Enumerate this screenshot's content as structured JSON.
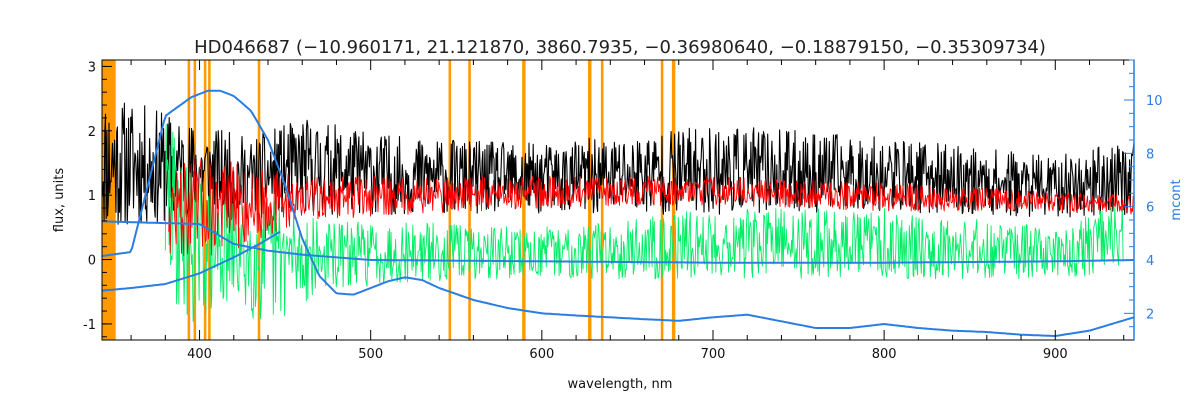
{
  "chart_data": {
    "type": "line",
    "title": "HD046687    (−10.960171, 21.121870, 3860.7935, −0.36980640, −0.18879150, −0.35309734)",
    "xlabel": "wavelength, nm",
    "ylabel": "flux, units",
    "y2label": "mcont",
    "xlim": [
      343,
      946
    ],
    "ylim": [
      -1.25,
      3.1
    ],
    "y2lim": [
      1.0,
      11.5
    ],
    "xticks": [
      400,
      500,
      600,
      700,
      800,
      900
    ],
    "yticks": [
      -1,
      0,
      1,
      2,
      3
    ],
    "y2ticks": [
      2,
      4,
      6,
      8,
      10
    ],
    "grid": false,
    "legend": "none",
    "colors": {
      "observed": "#000000",
      "model": "#ff0000",
      "residual": "#00ee66",
      "continuum": "#2a7de1",
      "masks": "#ff9900",
      "axis": "#000000",
      "right_axis": "#2a7de1"
    },
    "masked_regions_nm": [
      [
        343,
        351
      ],
      [
        393,
        394.5
      ],
      [
        396.5,
        398
      ],
      [
        402.5,
        404
      ],
      [
        405,
        406.5
      ],
      [
        434,
        435.5
      ],
      [
        545.5,
        546.5
      ],
      [
        557,
        558.5
      ],
      [
        588.5,
        590.5
      ],
      [
        627,
        629
      ],
      [
        634.5,
        636
      ],
      [
        669.5,
        671
      ],
      [
        676,
        678
      ]
    ],
    "series": [
      {
        "key": "observed",
        "axis": "left",
        "x_start": 343,
        "x_end": 946,
        "envelope_x": [
          343,
          380,
          400,
          430,
          460,
          520,
          600,
          700,
          800,
          900,
          946
        ],
        "envelope_upper": [
          2.6,
          2.3,
          2.1,
          1.9,
          2.2,
          1.9,
          1.8,
          2.1,
          1.9,
          1.6,
          1.9
        ],
        "envelope_lower": [
          0.45,
          0.55,
          0.7,
          0.6,
          0.7,
          0.7,
          0.7,
          0.7,
          0.75,
          0.65,
          0.7
        ]
      },
      {
        "key": "model",
        "axis": "left",
        "x_start": 382,
        "x_end": 946,
        "envelope_x": [
          382,
          400,
          430,
          460,
          520,
          600,
          700,
          800,
          900,
          946
        ],
        "envelope_upper": [
          1.4,
          1.6,
          1.5,
          1.3,
          1.3,
          1.3,
          1.3,
          1.2,
          1.05,
          1.0
        ],
        "envelope_lower": [
          0.1,
          0.0,
          0.2,
          0.6,
          0.7,
          0.8,
          0.85,
          0.75,
          0.75,
          0.7
        ]
      },
      {
        "key": "residual",
        "axis": "left",
        "x_start": 380,
        "x_end": 940,
        "envelope_x": [
          380,
          395,
          420,
          440,
          470,
          520,
          600,
          700,
          800,
          900,
          940
        ],
        "envelope_upper": [
          2.4,
          1.4,
          0.9,
          1.1,
          0.6,
          0.6,
          0.5,
          0.8,
          0.8,
          0.5,
          0.9
        ],
        "envelope_lower": [
          -0.6,
          -1.0,
          -0.7,
          -1.1,
          -0.5,
          -0.35,
          -0.3,
          -0.3,
          -0.3,
          -0.3,
          -0.2
        ]
      },
      {
        "key": "continuum",
        "axis": "right",
        "x": [
          343,
          360,
          380,
          395,
          405,
          412,
          420,
          430,
          440,
          450,
          460,
          470,
          480,
          490,
          500,
          510,
          520,
          530,
          540,
          560,
          580,
          600,
          620,
          640,
          660,
          680,
          700,
          720,
          740,
          760,
          780,
          800,
          820,
          840,
          860,
          880,
          900,
          920,
          946
        ],
        "y": [
          4.15,
          4.3,
          9.4,
          10.1,
          10.35,
          10.35,
          10.15,
          9.6,
          8.5,
          6.8,
          4.8,
          3.4,
          2.75,
          2.7,
          2.95,
          3.2,
          3.35,
          3.25,
          2.95,
          2.5,
          2.2,
          2.0,
          1.92,
          1.85,
          1.78,
          1.72,
          1.85,
          1.95,
          1.7,
          1.45,
          1.45,
          1.6,
          1.45,
          1.35,
          1.3,
          1.2,
          1.15,
          1.35,
          1.85
        ]
      },
      {
        "key": "continuum_low",
        "axis": "right",
        "x": [
          343,
          370,
          400,
          420,
          440,
          460,
          480,
          500,
          600,
          700,
          800,
          900,
          946
        ],
        "y": [
          5.45,
          5.4,
          5.35,
          4.6,
          4.35,
          4.2,
          4.1,
          4.0,
          3.95,
          3.9,
          3.9,
          3.95,
          4.0
        ]
      },
      {
        "key": "continuum_rise",
        "axis": "right",
        "x": [
          343,
          360,
          380,
          400,
          420,
          435,
          448
        ],
        "y": [
          2.85,
          2.95,
          3.1,
          3.5,
          4.1,
          4.6,
          5.1
        ]
      }
    ]
  }
}
